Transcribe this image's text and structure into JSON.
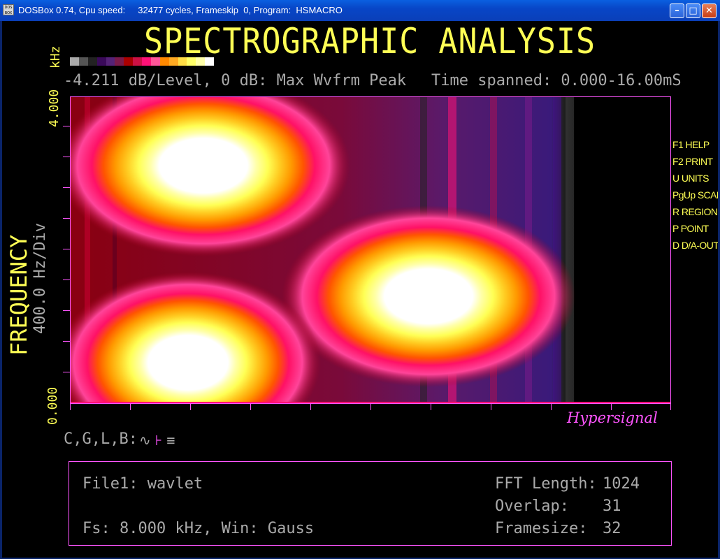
{
  "window": {
    "title": "DOSBox 0.74, Cpu speed:     32477 cycles, Frameskip  0, Program:  HSMACRO",
    "icon_text": "DOS BOX",
    "buttons": [
      "minimize-icon",
      "maximize-icon",
      "close-icon"
    ]
  },
  "app": {
    "heading": "SPECTROGRAPHIC ANALYSIS",
    "scale_info": "-4.211 dB/Level, 0 dB: Max Wvfrm Peak",
    "time_info": "Time spanned: 0.000-16.00mS",
    "y_unit": "kHz",
    "y_axis_title": "FREQUENCY",
    "y_division": "400.0 Hz/Div",
    "y_tick_top": "4.000",
    "y_tick_bottom": "0.000",
    "brand": "Hypersignal",
    "colors": {
      "palette": [
        "#aaaaaa",
        "#555555",
        "#000000",
        "#3a0a5a",
        "#552277",
        "#7a1a4a",
        "#aa0000",
        "#cc1144",
        "#ff1177",
        "#ff5599",
        "#ff8800",
        "#ffaa22",
        "#ffdd44",
        "#ffff66",
        "#ffffaa",
        "#ffffff"
      ]
    }
  },
  "side_menu": [
    {
      "key": "F1",
      "label": "HELP"
    },
    {
      "key": "F2",
      "label": "PRINT"
    },
    {
      "key": "U",
      "label": "UNITS"
    },
    {
      "key": "PgUp",
      "label": "SCALE"
    },
    {
      "key": "R",
      "label": "REGION"
    },
    {
      "key": "P",
      "label": "POINT"
    },
    {
      "key": "D",
      "label": "D/A-OUT"
    }
  ],
  "modes": {
    "label": "C,G,L,B:"
  },
  "info_box": {
    "file": "File1: wavlet",
    "fs": "Fs: 8.000 kHz, Win: Gauss",
    "fft_label": "FFT Length:",
    "fft_value": "1024",
    "overlap_label": "Overlap:",
    "overlap_value": "31",
    "framesize_label": "Framesize:",
    "framesize_value": "32"
  }
}
